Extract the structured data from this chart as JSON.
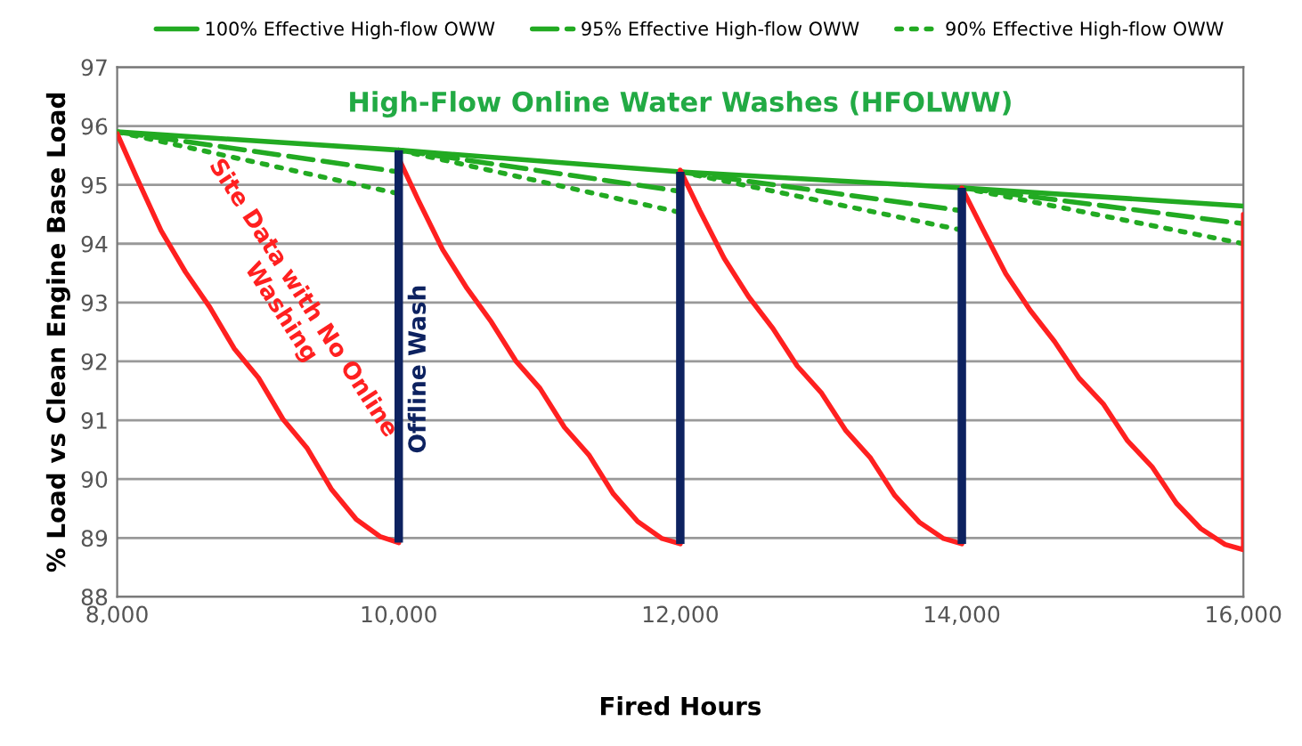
{
  "chart_data": {
    "type": "line",
    "title": "High-Flow Online Water Washes (HFOLWW)",
    "xlabel": "Fired Hours",
    "ylabel": "% Load vs Clean Engine Base Load",
    "xlim": [
      8000,
      16000
    ],
    "xticks": [
      {
        "value": 8000,
        "label": "8,000"
      },
      {
        "value": 10000,
        "label": "10,000"
      },
      {
        "value": 12000,
        "label": "12,000"
      },
      {
        "value": 14000,
        "label": "14,000"
      },
      {
        "value": 16000,
        "label": "16,000"
      }
    ],
    "ylim": [
      88,
      97
    ],
    "yticks": [
      88,
      89,
      90,
      91,
      92,
      93,
      94,
      95,
      96,
      97
    ],
    "grid": "y",
    "legend": "top",
    "annotations": [
      "Site Data with No Online Washing",
      "Offline Wash"
    ],
    "series": [
      {
        "name": "100% Effective High-flow OWW",
        "color": "#22aa22",
        "line_style": "solid",
        "x": [
          8000,
          10000,
          12000,
          14000,
          16000
        ],
        "values": [
          95.9,
          95.59,
          95.22,
          94.95,
          94.64
        ]
      },
      {
        "name": "95% Effective High-flow OWW",
        "color": "#22aa22",
        "line_style": "dashed",
        "x": [
          8000,
          10000
        ],
        "values": [
          95.9,
          95.22
        ]
      },
      {
        "color": "#22aa22",
        "line_style": "dashed",
        "x": [
          10000,
          12000
        ],
        "values": [
          95.59,
          94.89
        ]
      },
      {
        "color": "#22aa22",
        "line_style": "dashed",
        "x": [
          12000,
          14000
        ],
        "values": [
          95.22,
          94.56
        ]
      },
      {
        "color": "#22aa22",
        "line_style": "dashed",
        "x": [
          14000,
          16000
        ],
        "values": [
          94.95,
          94.34
        ]
      },
      {
        "name": "90% Effective High-flow OWW",
        "color": "#22aa22",
        "line_style": "dotted",
        "x": [
          8000,
          10000
        ],
        "values": [
          95.9,
          94.85
        ]
      },
      {
        "color": "#22aa22",
        "line_style": "dotted",
        "x": [
          10000,
          12000
        ],
        "values": [
          95.59,
          94.53
        ]
      },
      {
        "color": "#22aa22",
        "line_style": "dotted",
        "x": [
          12000,
          14000
        ],
        "values": [
          95.22,
          94.23
        ]
      },
      {
        "color": "#22aa22",
        "line_style": "dotted",
        "x": [
          14000,
          16000
        ],
        "values": [
          94.95,
          94.0
        ]
      },
      {
        "color": "#ff2020",
        "line_style": "solid",
        "x": [
          8000,
          8139,
          8312,
          8485,
          8658,
          8831,
          9004,
          9177,
          9351,
          9524,
          9697,
          9870,
          10000,
          10000,
          10139,
          10312,
          10485,
          10658,
          10831,
          11004,
          11177,
          11351,
          11524,
          11697,
          11870,
          12000,
          12000,
          12139,
          12312,
          12485,
          12658,
          12831,
          13004,
          13177,
          13351,
          13524,
          13697,
          13870,
          14000,
          14000,
          14139,
          14312,
          14485,
          14658,
          14831,
          15004,
          15177,
          15351,
          15524,
          15697,
          15870,
          16000,
          16000
        ],
        "values": [
          95.87,
          95.12,
          94.22,
          93.52,
          92.92,
          92.22,
          91.72,
          91.02,
          90.52,
          89.82,
          89.32,
          89.02,
          88.92,
          95.45,
          94.74,
          93.9,
          93.24,
          92.67,
          92.01,
          91.54,
          90.88,
          90.41,
          89.75,
          89.28,
          88.99,
          88.9,
          95.25,
          94.56,
          93.75,
          93.1,
          92.56,
          91.92,
          91.46,
          90.82,
          90.36,
          89.72,
          89.27,
          88.99,
          88.9,
          94.95,
          94.29,
          93.49,
          92.87,
          92.34,
          91.72,
          91.28,
          90.65,
          90.21,
          89.59,
          89.16,
          88.89,
          88.8,
          94.5
        ]
      },
      {
        "type": "bar",
        "color": "#0d2260",
        "x": [
          10000,
          12000,
          14000
        ],
        "base": [
          88.92,
          88.9,
          88.9
        ],
        "values": [
          6.67,
          6.32,
          6.05
        ]
      }
    ]
  }
}
